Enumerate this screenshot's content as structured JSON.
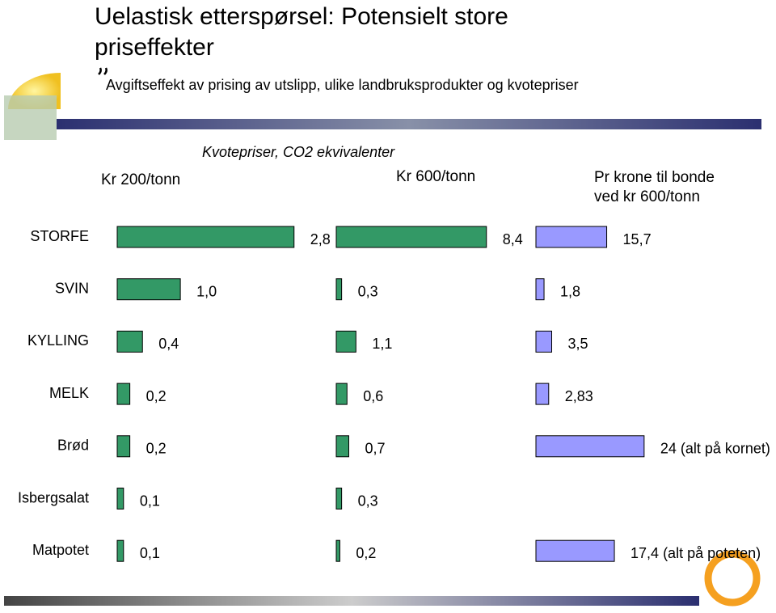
{
  "title": "Uelastisk etterspørsel: Potensielt store priseffekter",
  "subtitle": "Avgiftseffekt av prising av utslipp, ulike landbruksprodukter og kvotepriser",
  "group_title": "Kvotepriser, CO2 ekvivalenter",
  "categories": [
    "STORFE",
    "SVIN",
    "KYLLING",
    "MELK",
    "Brød",
    "Isbergsalat",
    "Matpotet"
  ],
  "chart_data": [
    {
      "type": "bar",
      "title": "Kr 200/tonn",
      "color": "#339966",
      "xlim": [
        0,
        3.2
      ],
      "values": [
        2.8,
        1.0,
        0.4,
        0.2,
        0.2,
        0.1,
        0.1
      ],
      "value_labels": [
        "2,8",
        "1,0",
        "0,4",
        "0,2",
        "0,2",
        "0,1",
        "0,1"
      ]
    },
    {
      "type": "bar",
      "title": "Kr 600/tonn",
      "color": "#339966",
      "xlim": [
        0,
        10.4
      ],
      "values": [
        8.4,
        0.3,
        1.1,
        0.6,
        0.7,
        0.3,
        0.2
      ],
      "value_labels": [
        "8,4",
        "0,3",
        "1,1",
        "0,6",
        "0,7",
        "0,3",
        "0,2"
      ]
    },
    {
      "type": "bar",
      "title": "Pr krone til bonde ved kr 600/tonn",
      "color": "#9999ff",
      "xlim": [
        0,
        52
      ],
      "values": [
        15.7,
        1.8,
        3.5,
        2.83,
        24,
        null,
        17.4
      ],
      "value_labels": [
        "15,7",
        "1,8",
        "3,5",
        "2,83",
        "24 (alt på kornet)",
        null,
        "17,4 (alt på poteten)"
      ]
    }
  ]
}
